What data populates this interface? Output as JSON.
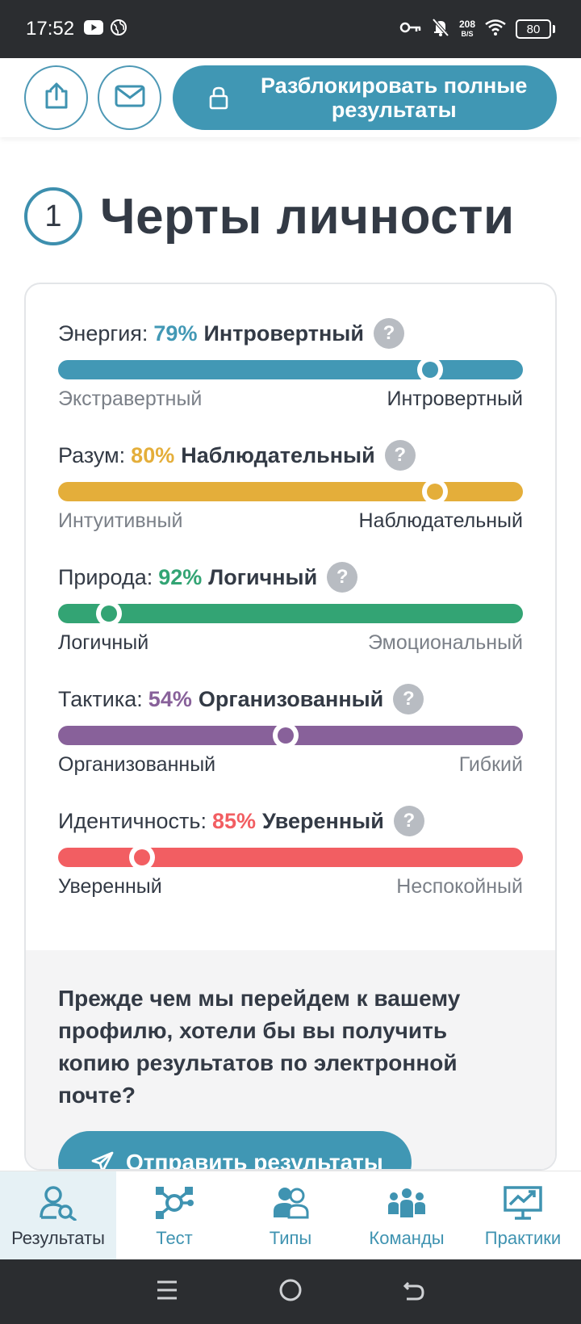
{
  "status_bar": {
    "time": "17:52",
    "net_speed_value": "208",
    "net_speed_unit": "B/S",
    "battery": "80"
  },
  "header": {
    "unlock_label": "Разблокировать полные результаты"
  },
  "section": {
    "number": "1",
    "title": "Черты личности"
  },
  "traits": [
    {
      "label": "Энергия:",
      "percent": "79%",
      "result": "Интровертный",
      "left": "Экстравертный",
      "right": "Интровертный",
      "active_side": "right",
      "position": 0.8,
      "color": "#4298b5"
    },
    {
      "label": "Разум:",
      "percent": "80%",
      "result": "Наблюдательный",
      "left": "Интуитивный",
      "right": "Наблюдательный",
      "active_side": "right",
      "position": 0.81,
      "color": "#e4ae3a"
    },
    {
      "label": "Природа:",
      "percent": "92%",
      "result": "Логичный",
      "left": "Логичный",
      "right": "Эмоциональный",
      "active_side": "left",
      "position": 0.11,
      "color": "#33a474"
    },
    {
      "label": "Тактика:",
      "percent": "54%",
      "result": "Организованный",
      "left": "Организованный",
      "right": "Гибкий",
      "active_side": "left",
      "position": 0.49,
      "color": "#88619a"
    },
    {
      "label": "Идентичность:",
      "percent": "85%",
      "result": "Уверенный",
      "left": "Уверенный",
      "right": "Неспокойный",
      "active_side": "left",
      "position": 0.18,
      "color": "#f25e62"
    }
  ],
  "email_prompt": {
    "text": "Прежде чем мы перейдем к вашему профилю, хотели бы вы получить копию результатов по электронной почте?",
    "button": "Отправить результаты"
  },
  "bottom_nav": [
    {
      "label": "Результаты",
      "icon": "results-icon",
      "active": true
    },
    {
      "label": "Тест",
      "icon": "test-icon",
      "active": false
    },
    {
      "label": "Типы",
      "icon": "types-icon",
      "active": false
    },
    {
      "label": "Команды",
      "icon": "teams-icon",
      "active": false
    },
    {
      "label": "Практики",
      "icon": "practices-icon",
      "active": false
    }
  ],
  "colors": {
    "accent": "#4097b4",
    "text": "#333a45"
  }
}
